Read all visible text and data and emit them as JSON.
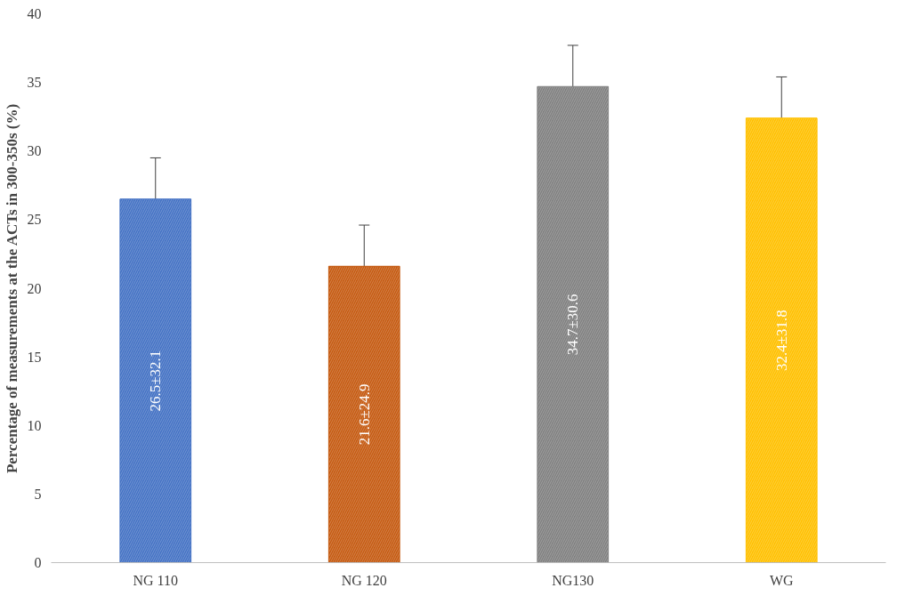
{
  "chart_data": {
    "type": "bar",
    "ylabel": "Percentage of measurements at the ACTs in 300-350s (%)",
    "categories": [
      "NG 110",
      "NG 120",
      "NG130",
      "WG"
    ],
    "values": [
      26.5,
      21.6,
      34.7,
      32.4
    ],
    "colors": [
      "#4472c4",
      "#c55a11",
      "#808080",
      "#ffc000"
    ],
    "errors": [
      3,
      3,
      3,
      3
    ],
    "value_labels": [
      "26.5±32.1",
      "21.6±24.9",
      "34.7±30.6",
      "32.4±31.8"
    ],
    "ylim": [
      0,
      40
    ],
    "yticks": [
      0,
      5,
      10,
      15,
      20,
      25,
      30,
      35,
      40
    ],
    "grid": false
  }
}
